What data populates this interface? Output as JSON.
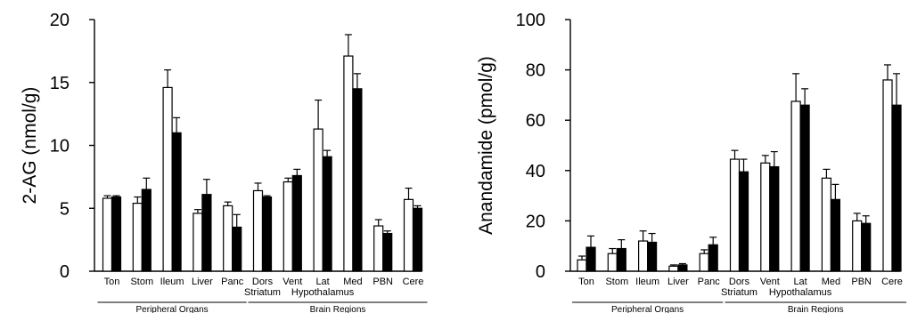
{
  "chart_data": [
    {
      "type": "bar",
      "ylabel": "2-AG (nmol/g)",
      "ylim": [
        0,
        20
      ],
      "yticks": [
        0,
        5,
        10,
        15,
        20
      ],
      "categories": [
        "Ton",
        "Stom",
        "Ileum",
        "Liver",
        "Panc",
        "Dors Striatum",
        "Vent",
        "Lat Hypothalamus",
        "Med",
        "PBN",
        "Cere"
      ],
      "category_lines": [
        [
          "Ton"
        ],
        [
          "Stom"
        ],
        [
          "Ileum"
        ],
        [
          "Liver"
        ],
        [
          "Panc"
        ],
        [
          "Dors",
          "Striatum"
        ],
        [
          "Vent"
        ],
        [
          "Lat",
          "Hypothalamus"
        ],
        [
          "Med"
        ],
        [
          "PBN"
        ],
        [
          "Cere"
        ]
      ],
      "groups": [
        {
          "label": "Peripheral Organs",
          "from": 0,
          "to": 4
        },
        {
          "label": "Brain Regions",
          "from": 5,
          "to": 10
        }
      ],
      "series": [
        {
          "color": "#ffffff",
          "values": [
            5.8,
            5.4,
            14.6,
            4.6,
            5.2,
            6.4,
            7.1,
            11.3,
            17.1,
            3.6,
            5.7
          ],
          "errors": [
            0.2,
            0.5,
            1.4,
            0.3,
            0.3,
            0.6,
            0.3,
            2.3,
            1.7,
            0.5,
            0.9
          ]
        },
        {
          "color": "#000000",
          "values": [
            5.9,
            6.5,
            11.0,
            6.1,
            3.5,
            5.9,
            7.6,
            9.1,
            14.5,
            3.0,
            5.0
          ],
          "errors": [
            0.1,
            0.9,
            1.2,
            1.2,
            1.0,
            0.1,
            0.5,
            0.5,
            1.2,
            0.2,
            0.2
          ]
        }
      ]
    },
    {
      "type": "bar",
      "ylabel": "Anandamide (pmol/g)",
      "ylim": [
        0,
        100
      ],
      "yticks": [
        0,
        20,
        40,
        60,
        80,
        100
      ],
      "categories": [
        "Ton",
        "Stom",
        "Ileum",
        "Liver",
        "Panc",
        "Dors Striatum",
        "Vent",
        "Lat Hypothalamus",
        "Med",
        "PBN",
        "Cere"
      ],
      "category_lines": [
        [
          "Ton"
        ],
        [
          "Stom"
        ],
        [
          "Ileum"
        ],
        [
          "Liver"
        ],
        [
          "Panc"
        ],
        [
          "Dors",
          "Striatum"
        ],
        [
          "Vent"
        ],
        [
          "Lat",
          "Hypothalamus"
        ],
        [
          "Med"
        ],
        [
          "PBN"
        ],
        [
          "Cere"
        ]
      ],
      "groups": [
        {
          "label": "Peripheral Organs",
          "from": 0,
          "to": 4
        },
        {
          "label": "Brain Regions",
          "from": 5,
          "to": 10
        }
      ],
      "series": [
        {
          "color": "#ffffff",
          "values": [
            4.5,
            7.0,
            12.0,
            2.0,
            7.0,
            44.5,
            43.0,
            67.5,
            37.0,
            20.0,
            76.0
          ],
          "errors": [
            1.5,
            2.0,
            4.0,
            0.5,
            1.5,
            3.5,
            3.0,
            11.0,
            3.5,
            3.0,
            6.0
          ]
        },
        {
          "color": "#000000",
          "values": [
            9.5,
            9.0,
            11.5,
            2.5,
            10.5,
            39.5,
            41.5,
            66.0,
            28.5,
            19.0,
            66.0
          ],
          "errors": [
            4.5,
            3.5,
            3.5,
            0.5,
            3.0,
            5.0,
            6.0,
            6.5,
            6.0,
            3.0,
            12.5
          ]
        }
      ]
    }
  ]
}
